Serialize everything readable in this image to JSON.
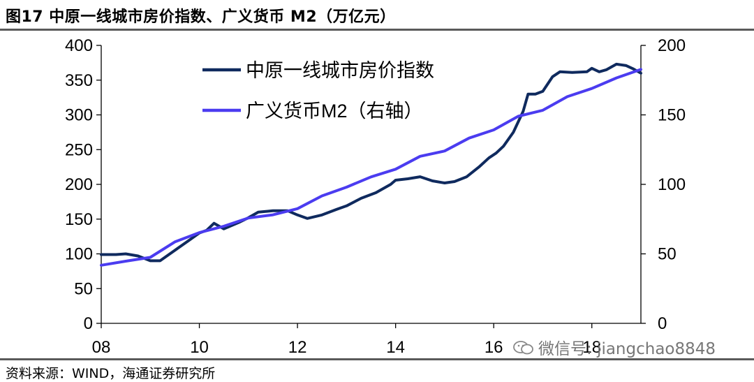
{
  "figure": {
    "title": "图17 中原一线城市房价指数、广义货币 M2（万亿元）",
    "source": "资料来源：WIND，海通证券研究所",
    "watermark": "微信号: jiangchao8848"
  },
  "colors": {
    "house": "#0f2a5e",
    "m2": "#4b3cf0",
    "axis": "#000000",
    "rule": "#5a5a5a"
  },
  "chart_data": {
    "type": "line",
    "title": "",
    "xlabel": "",
    "ylabel": "",
    "xlim": [
      2008.0,
      2019.0
    ],
    "x_tick_labels": [
      "08",
      "10",
      "12",
      "14",
      "16",
      "18"
    ],
    "x_tick_values": [
      2008,
      2010,
      2012,
      2014,
      2016,
      2018
    ],
    "ylim": [
      0,
      400
    ],
    "y_ticks": [
      0,
      50,
      100,
      150,
      200,
      250,
      300,
      350,
      400
    ],
    "y2lim": [
      0,
      200
    ],
    "y2_ticks": [
      0,
      50,
      100,
      150,
      200
    ],
    "legend_position": "top-center",
    "series": [
      {
        "name": "中原一线城市房价指数",
        "axis": "left",
        "x": [
          2008.0,
          2008.3,
          2008.5,
          2008.75,
          2009.0,
          2009.2,
          2009.5,
          2009.8,
          2010.0,
          2010.15,
          2010.3,
          2010.5,
          2010.8,
          2011.0,
          2011.2,
          2011.5,
          2011.8,
          2012.0,
          2012.2,
          2012.5,
          2012.8,
          2013.0,
          2013.3,
          2013.6,
          2013.9,
          2014.0,
          2014.25,
          2014.5,
          2014.75,
          2015.0,
          2015.2,
          2015.45,
          2015.7,
          2015.9,
          2016.05,
          2016.2,
          2016.4,
          2016.6,
          2016.7,
          2016.85,
          2017.0,
          2017.2,
          2017.35,
          2017.6,
          2017.9,
          2018.0,
          2018.15,
          2018.3,
          2018.5,
          2018.7,
          2018.85,
          2019.0
        ],
        "values": [
          99,
          99,
          100,
          97,
          90,
          90,
          105,
          120,
          130,
          134,
          144,
          136,
          145,
          152,
          160,
          162,
          162,
          156,
          151,
          156,
          164,
          169,
          180,
          188,
          200,
          206,
          208,
          211,
          205,
          202,
          204,
          211,
          225,
          238,
          245,
          255,
          275,
          305,
          330,
          330,
          334,
          355,
          362,
          361,
          362,
          367,
          362,
          365,
          373,
          371,
          366,
          360
        ]
      },
      {
        "name": "广义货币M2（右轴）",
        "axis": "right",
        "x": [
          2008.0,
          2008.5,
          2009.0,
          2009.5,
          2010.0,
          2010.5,
          2011.0,
          2011.5,
          2012.0,
          2012.5,
          2013.0,
          2013.5,
          2014.0,
          2014.5,
          2015.0,
          2015.5,
          2016.0,
          2016.5,
          2017.0,
          2017.5,
          2018.0,
          2018.5,
          2019.0
        ],
        "values": [
          41.8,
          44.7,
          47.5,
          58.6,
          65.3,
          69.9,
          75.8,
          78.1,
          82.5,
          91.7,
          98.0,
          105.4,
          110.9,
          120.2,
          124.0,
          133.3,
          139.2,
          149.0,
          153.3,
          163.1,
          169.0,
          176.6,
          182.7
        ]
      }
    ]
  }
}
